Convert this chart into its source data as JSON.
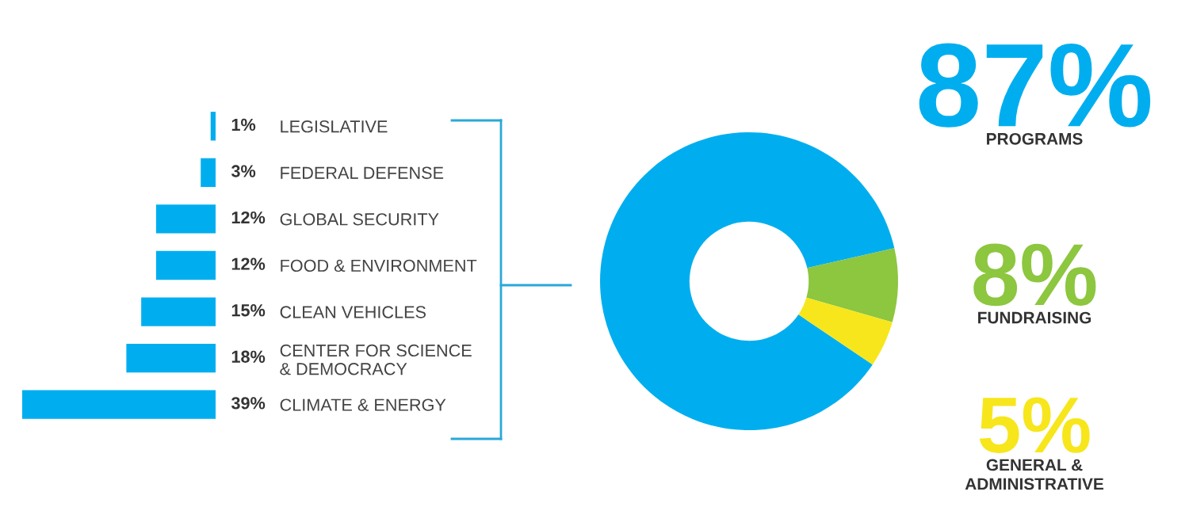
{
  "chart_data": [
    {
      "type": "bar",
      "orientation": "horizontal",
      "categories": [
        "LEGISLATIVE",
        "FEDERAL DEFENSE",
        "GLOBAL SECURITY",
        "FOOD & ENVIRONMENT",
        "CLEAN VEHICLES",
        "CENTER FOR SCIENCE\n& DEMOCRACY",
        "CLIMATE & ENERGY"
      ],
      "values": [
        1,
        3,
        12,
        12,
        15,
        18,
        39
      ],
      "value_labels": [
        "1%",
        "3%",
        "12%",
        "12%",
        "15%",
        "18%",
        "39%"
      ],
      "color": "#00aeef",
      "tick_labels": "y"
    },
    {
      "type": "donut",
      "categories": [
        "PROGRAMS",
        "FUNDRAISING",
        "GENERAL &\nADMINISTRATIVE"
      ],
      "values": [
        87,
        8,
        5
      ],
      "colors": [
        "#00aeef",
        "#8dc63f",
        "#f7e61b"
      ],
      "value_labels": [
        "87%",
        "8%",
        "5%"
      ]
    }
  ]
}
